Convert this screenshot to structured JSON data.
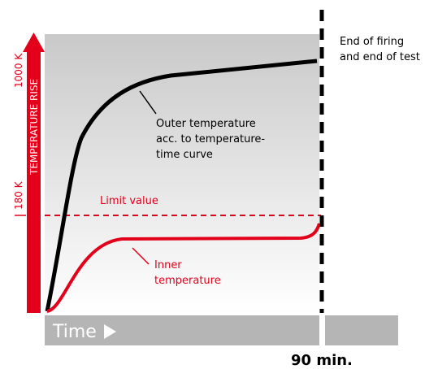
{
  "axis": {
    "title": "TEMPERATURE RISE",
    "ticks": [
      "1000 K",
      "180 K"
    ]
  },
  "end_label": [
    "End of firing",
    "and end of test"
  ],
  "outer_label": [
    "Outer temperature",
    "acc. to temperature-",
    "time curve"
  ],
  "limit_label": "Limit value",
  "inner_label": [
    "Inner",
    "temperature"
  ],
  "time_label": "Time",
  "end_time": "90 min."
}
